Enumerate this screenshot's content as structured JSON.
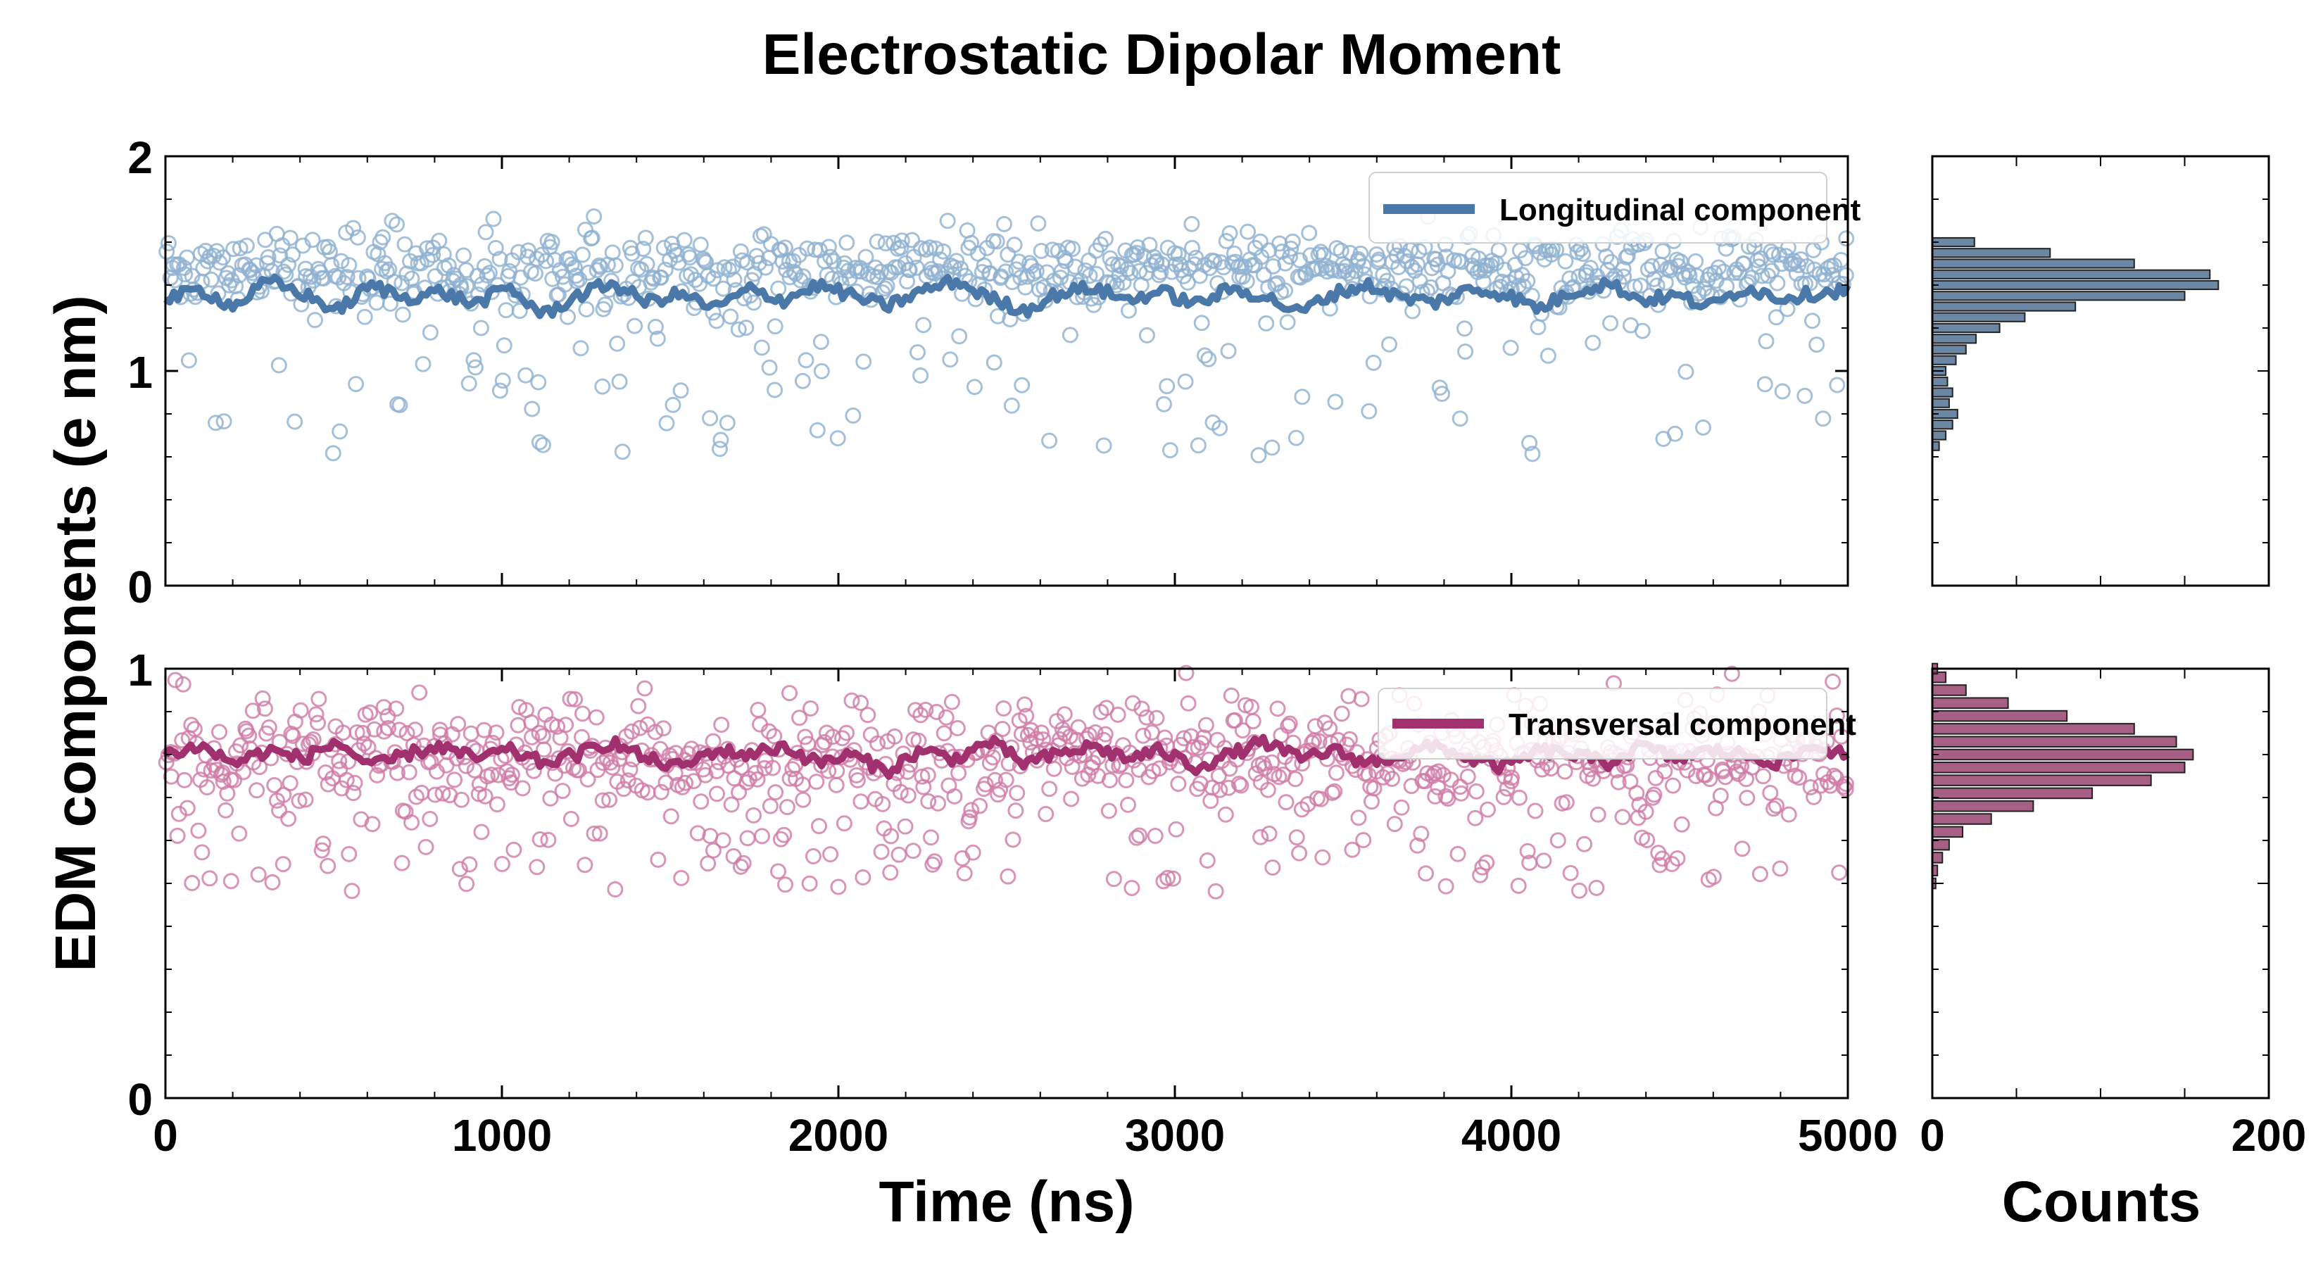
{
  "chart_data": {
    "type": "scatter",
    "title": "Electrostatic Dipolar Moment",
    "ylabel": "EDM components (e nm)",
    "xlabel_time": "Time (ns)",
    "xlabel_hist": "Counts",
    "time_xlim": [
      0,
      5000
    ],
    "time_xticks": [
      "0",
      "1000",
      "2000",
      "3000",
      "4000",
      "5000"
    ],
    "hist_xlim": [
      0,
      200
    ],
    "hist_xticks": [
      "0",
      "200"
    ],
    "grid": false,
    "panels": [
      {
        "id": "longitudinal",
        "ylim": [
          0,
          2
        ],
        "yticks": [
          "0",
          "1",
          "2"
        ],
        "legend": "Longitudinal component",
        "legend_position": "top-right",
        "color": "#4a78a8",
        "scatter_color": "#8fb0d0",
        "hist_color": "#3b5f86",
        "scatter_mean": 1.47,
        "scatter_spread": 0.09,
        "low_tail_range": [
          0.6,
          1.25
        ],
        "running_avg": [
          1.33,
          1.38,
          1.3,
          1.42,
          1.36,
          1.28,
          1.4,
          1.34,
          1.37,
          1.31,
          1.39,
          1.26,
          1.35,
          1.41,
          1.32,
          1.36,
          1.29,
          1.38,
          1.33,
          1.4,
          1.35,
          1.3,
          1.37,
          1.42,
          1.34,
          1.28,
          1.36,
          1.39,
          1.33,
          1.37,
          1.31,
          1.38,
          1.35,
          1.27,
          1.36,
          1.4,
          1.34,
          1.32,
          1.38,
          1.36,
          1.29,
          1.37,
          1.41,
          1.33,
          1.35,
          1.3,
          1.39,
          1.34,
          1.36,
          1.38
        ],
        "hist_bin_centers": [
          0.65,
          0.7,
          0.75,
          0.8,
          0.85,
          0.9,
          0.95,
          1.0,
          1.05,
          1.1,
          1.15,
          1.2,
          1.25,
          1.3,
          1.35,
          1.4,
          1.45,
          1.5,
          1.55,
          1.6
        ],
        "hist_counts": [
          4,
          8,
          12,
          15,
          10,
          12,
          9,
          8,
          14,
          20,
          26,
          40,
          55,
          85,
          150,
          170,
          165,
          120,
          70,
          25
        ]
      },
      {
        "id": "transversal",
        "ylim": [
          0,
          1
        ],
        "yticks": [
          "0",
          "1"
        ],
        "legend": "Transversal component",
        "legend_position": "top-right",
        "color": "#a0306e",
        "scatter_color": "#cf7aa6",
        "hist_color": "#8a2a5c",
        "scatter_mean": 0.79,
        "scatter_spread": 0.07,
        "low_tail_range": [
          0.48,
          0.62
        ],
        "running_avg": [
          0.8,
          0.82,
          0.78,
          0.81,
          0.79,
          0.83,
          0.77,
          0.8,
          0.82,
          0.79,
          0.81,
          0.78,
          0.8,
          0.83,
          0.79,
          0.77,
          0.81,
          0.8,
          0.82,
          0.78,
          0.8,
          0.76,
          0.81,
          0.79,
          0.83,
          0.78,
          0.8,
          0.82,
          0.79,
          0.81,
          0.77,
          0.8,
          0.83,
          0.79,
          0.81,
          0.78,
          0.8,
          0.82,
          0.79,
          0.77,
          0.81,
          0.8,
          0.78,
          0.82,
          0.79,
          0.81,
          0.8,
          0.78,
          0.82,
          0.8
        ],
        "hist_bin_centers": [
          0.5,
          0.53,
          0.56,
          0.59,
          0.62,
          0.65,
          0.68,
          0.71,
          0.74,
          0.77,
          0.8,
          0.83,
          0.86,
          0.89,
          0.92,
          0.95,
          0.98,
          1.0
        ],
        "hist_counts": [
          2,
          3,
          6,
          10,
          18,
          35,
          60,
          95,
          130,
          150,
          155,
          145,
          120,
          80,
          45,
          20,
          8,
          3
        ]
      }
    ]
  }
}
